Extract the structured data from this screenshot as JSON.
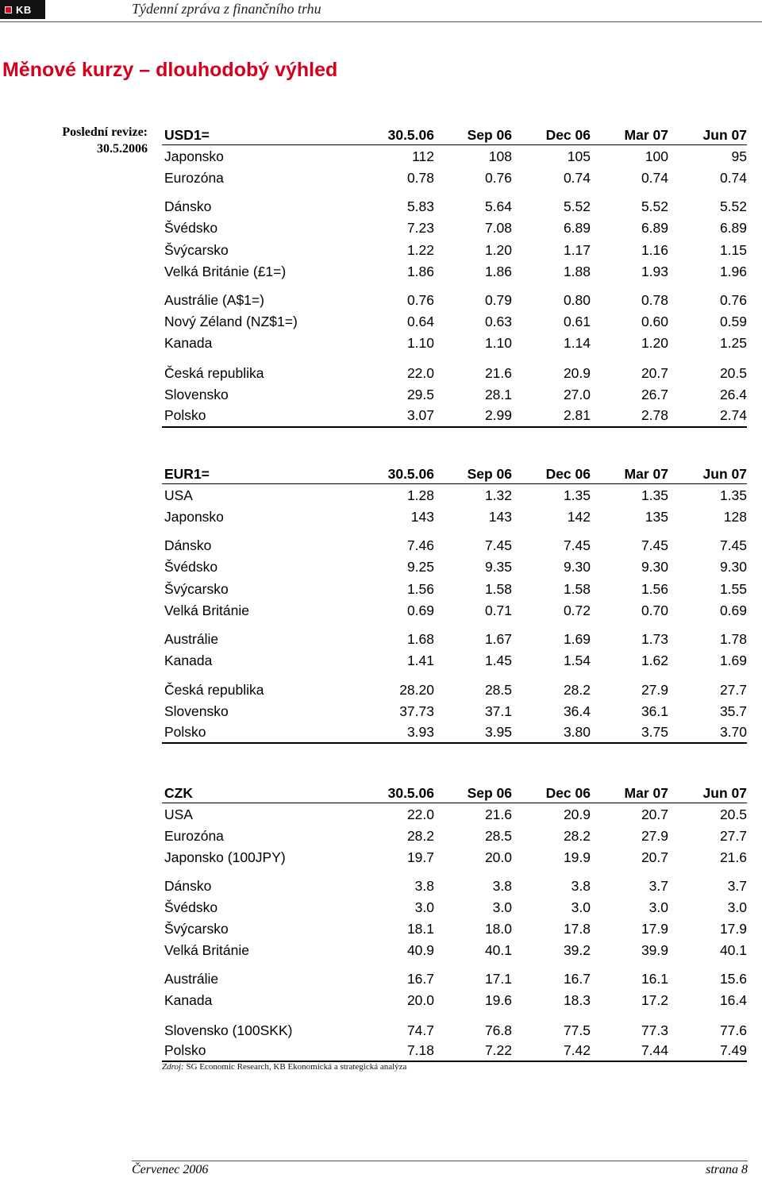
{
  "header": {
    "logo_text": "KB",
    "title": "Týdenní zpráva z finančního trhu"
  },
  "page_title": "Měnové kurzy – dlouhodobý výhled",
  "revision": {
    "label": "Poslední revize:",
    "date": "30.5.2006"
  },
  "tables": [
    {
      "head": [
        "USD1=",
        "30.5.06",
        "Sep 06",
        "Dec 06",
        "Mar 07",
        "Jun 07"
      ],
      "rows": [
        [
          "Japonsko",
          "112",
          "108",
          "105",
          "100",
          "95"
        ],
        [
          "Eurozóna",
          "0.78",
          "0.76",
          "0.74",
          "0.74",
          "0.74"
        ],
        [
          "Dánsko",
          "5.83",
          "5.64",
          "5.52",
          "5.52",
          "5.52"
        ],
        [
          "Švédsko",
          "7.23",
          "7.08",
          "6.89",
          "6.89",
          "6.89"
        ],
        [
          "Švýcarsko",
          "1.22",
          "1.20",
          "1.17",
          "1.16",
          "1.15"
        ],
        [
          "Velká Británie (£1=)",
          "1.86",
          "1.86",
          "1.88",
          "1.93",
          "1.96"
        ],
        [
          "Austrálie (A$1=)",
          "0.76",
          "0.79",
          "0.80",
          "0.78",
          "0.76"
        ],
        [
          "Nový Zéland (NZ$1=)",
          "0.64",
          "0.63",
          "0.61",
          "0.60",
          "0.59"
        ],
        [
          "Kanada",
          "1.10",
          "1.10",
          "1.14",
          "1.20",
          "1.25"
        ],
        [
          "Česká republika",
          "22.0",
          "21.6",
          "20.9",
          "20.7",
          "20.5"
        ],
        [
          "Slovensko",
          "29.5",
          "28.1",
          "27.0",
          "26.7",
          "26.4"
        ],
        [
          "Polsko",
          "3.07",
          "2.99",
          "2.81",
          "2.78",
          "2.74"
        ]
      ]
    },
    {
      "head": [
        "EUR1=",
        "30.5.06",
        "Sep 06",
        "Dec 06",
        "Mar 07",
        "Jun 07"
      ],
      "rows": [
        [
          "USA",
          "1.28",
          "1.32",
          "1.35",
          "1.35",
          "1.35"
        ],
        [
          "Japonsko",
          "143",
          "143",
          "142",
          "135",
          "128"
        ],
        [
          "Dánsko",
          "7.46",
          "7.45",
          "7.45",
          "7.45",
          "7.45"
        ],
        [
          "Švédsko",
          "9.25",
          "9.35",
          "9.30",
          "9.30",
          "9.30"
        ],
        [
          "Švýcarsko",
          "1.56",
          "1.58",
          "1.58",
          "1.56",
          "1.55"
        ],
        [
          "Velká Británie",
          "0.69",
          "0.71",
          "0.72",
          "0.70",
          "0.69"
        ],
        [
          "Austrálie",
          "1.68",
          "1.67",
          "1.69",
          "1.73",
          "1.78"
        ],
        [
          "Kanada",
          "1.41",
          "1.45",
          "1.54",
          "1.62",
          "1.69"
        ],
        [
          "Česká republika",
          "28.20",
          "28.5",
          "28.2",
          "27.9",
          "27.7"
        ],
        [
          "Slovensko",
          "37.73",
          "37.1",
          "36.4",
          "36.1",
          "35.7"
        ],
        [
          "Polsko",
          "3.93",
          "3.95",
          "3.80",
          "3.75",
          "3.70"
        ]
      ]
    },
    {
      "head": [
        "CZK",
        "30.5.06",
        "Sep 06",
        "Dec 06",
        "Mar 07",
        "Jun 07"
      ],
      "rows": [
        [
          "USA",
          "22.0",
          "21.6",
          "20.9",
          "20.7",
          "20.5"
        ],
        [
          "Eurozóna",
          "28.2",
          "28.5",
          "28.2",
          "27.9",
          "27.7"
        ],
        [
          "Japonsko (100JPY)",
          "19.7",
          "20.0",
          "19.9",
          "20.7",
          "21.6"
        ],
        [
          "Dánsko",
          "3.8",
          "3.8",
          "3.8",
          "3.7",
          "3.7"
        ],
        [
          "Švédsko",
          "3.0",
          "3.0",
          "3.0",
          "3.0",
          "3.0"
        ],
        [
          "Švýcarsko",
          "18.1",
          "18.0",
          "17.8",
          "17.9",
          "17.9"
        ],
        [
          "Velká Británie",
          "40.9",
          "40.1",
          "39.2",
          "39.9",
          "40.1"
        ],
        [
          "Austrálie",
          "16.7",
          "17.1",
          "16.7",
          "16.1",
          "15.6"
        ],
        [
          "Kanada",
          "20.0",
          "19.6",
          "18.3",
          "17.2",
          "16.4"
        ],
        [
          "Slovensko (100SKK)",
          "74.7",
          "76.8",
          "77.5",
          "77.3",
          "77.6"
        ],
        [
          "Polsko",
          "7.18",
          "7.22",
          "7.42",
          "7.44",
          "7.49"
        ]
      ]
    }
  ],
  "source": {
    "label": "Zdroj:",
    "text": "SG Economic Research, KB Ekonomická a strategická analýza"
  },
  "footer": {
    "left": "Červenec 2006",
    "right": "strana 8"
  }
}
